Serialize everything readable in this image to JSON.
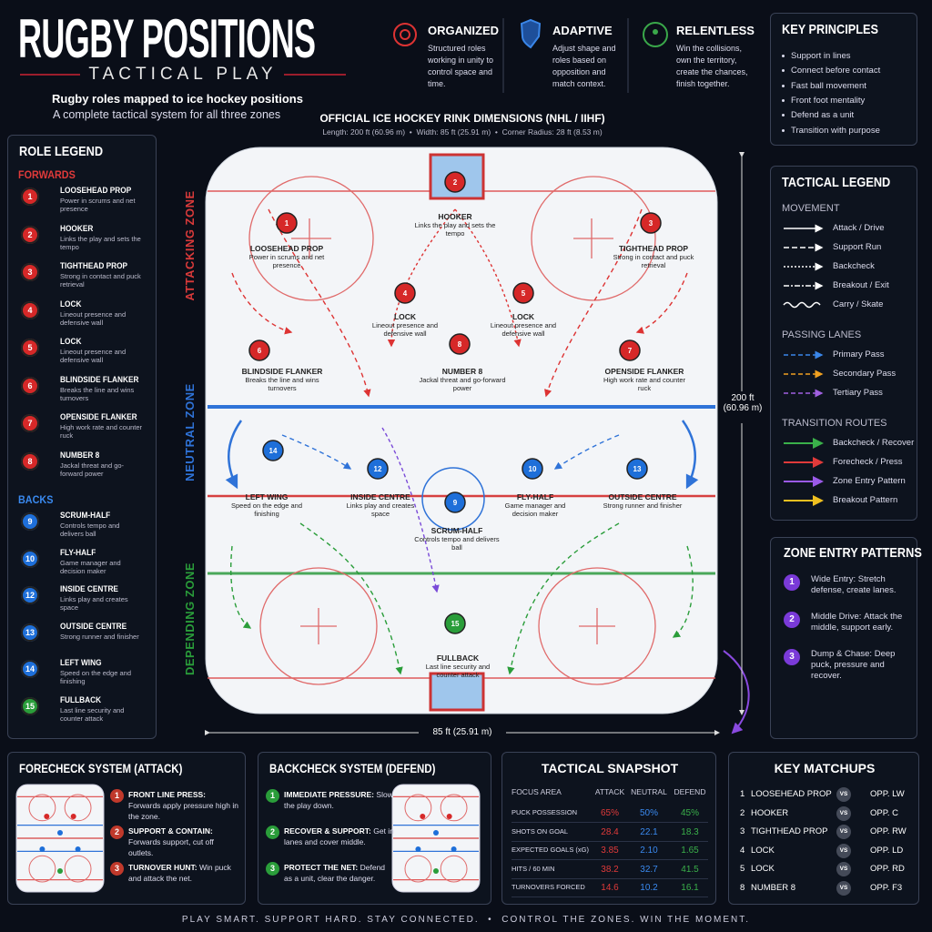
{
  "header": {
    "title": "RUGBY POSITIONS",
    "subtitle": "TACTICAL PLAY",
    "tagline": "Rugby roles mapped to ice hockey positions",
    "subtagline": "A complete tactical system for all three zones"
  },
  "pillars": [
    {
      "title": "ORGANIZED",
      "text": "Structured roles working in unity to control space and time."
    },
    {
      "title": "ADAPTIVE",
      "text": "Adjust shape and roles based on opposition and match context."
    },
    {
      "title": "RELENTLESS",
      "text": "Win the collisions, own the territory, create the chances, finish together."
    }
  ],
  "key_principles": {
    "title": "KEY PRINCIPLES",
    "items": [
      "Support in lines",
      "Connect before contact",
      "Fast ball movement",
      "Front foot mentality",
      "Defend as a unit",
      "Transition with purpose"
    ]
  },
  "role_legend": {
    "title": "ROLE LEGEND",
    "groups": [
      {
        "name": "FORWARDS",
        "roles": [
          {
            "number": "1",
            "name": "LOOSEHEAD PROP",
            "desc": "Power in scrums and net presence"
          },
          {
            "number": "2",
            "name": "HOOKER",
            "desc": "Links the play and sets the tempo"
          },
          {
            "number": "3",
            "name": "TIGHTHEAD PROP",
            "desc": "Strong in contact and puck retrieval"
          },
          {
            "number": "4",
            "name": "LOCK",
            "desc": "Lineout presence and defensive wall"
          },
          {
            "number": "5",
            "name": "LOCK",
            "desc": "Lineout presence and defensive wall"
          },
          {
            "number": "6",
            "name": "BLINDSIDE FLANKER",
            "desc": "Breaks the line and wins turnovers"
          },
          {
            "number": "7",
            "name": "OPENSIDE FLANKER",
            "desc": "High work rate and counter ruck"
          },
          {
            "number": "8",
            "name": "NUMBER 8",
            "desc": "Jackal threat and go-forward power"
          }
        ]
      },
      {
        "name": "BACKS",
        "roles": [
          {
            "number": "9",
            "name": "SCRUM-HALF",
            "desc": "Controls tempo and delivers ball"
          },
          {
            "number": "10",
            "name": "FLY-HALF",
            "desc": "Game manager and decision maker"
          },
          {
            "number": "12",
            "name": "INSIDE CENTRE",
            "desc": "Links play and creates space"
          },
          {
            "number": "13",
            "name": "OUTSIDE CENTRE",
            "desc": "Strong runner and finisher"
          },
          {
            "number": "14",
            "name": "LEFT WING",
            "desc": "Speed on the edge and finishing"
          },
          {
            "number": "15",
            "name": "FULLBACK",
            "desc": "Last line security and counter attack"
          }
        ]
      }
    ]
  },
  "rink": {
    "title": "OFFICIAL ICE HOCKEY RINK DIMENSIONS (NHL / IIHF)",
    "specs": "Length: 200 ft (60.96 m)  •  Width: 85 ft (25.91 m)  •  Corner Radius: 28 ft (8.53 m)",
    "zones": [
      "ATTACKING ZONE",
      "NEUTRAL ZONE",
      "DEPENDING ZONE"
    ],
    "length": "200 ft (60.96 m)",
    "width": "85 ft (25.91 m)"
  },
  "tactical_legend": {
    "title": "TACTICAL LEGEND",
    "groups": [
      {
        "name": "MOVEMENT",
        "items": [
          "Attack / Drive",
          "Support Run",
          "Backcheck",
          "Breakout / Exit",
          "Carry / Skate"
        ]
      },
      {
        "name": "PASSING LANES",
        "items": [
          "Primary Pass",
          "Secondary Pass",
          "Tertiary Pass"
        ]
      },
      {
        "name": "TRANSITION ROUTES",
        "items": [
          "Backcheck / Recover",
          "Forecheck / Press",
          "Zone Entry Pattern",
          "Breakout Pattern"
        ]
      }
    ]
  },
  "zone_entry": {
    "title": "ZONE ENTRY PATTERNS",
    "items": [
      {
        "number": "1",
        "lead": "Wide Entry:",
        "text": "Stretch defense, create lanes."
      },
      {
        "number": "2",
        "lead": "Middle Drive:",
        "text": "Attack the middle, support early."
      },
      {
        "number": "3",
        "lead": "Dump & Chase:",
        "text": "Deep puck, pressure and recover."
      }
    ]
  },
  "forecheck": {
    "title": "FORECHECK SYSTEM (ATTACK)",
    "items": [
      {
        "number": "1",
        "lead": "FRONT LINE PRESS:",
        "text": "Forwards apply pressure high in the zone."
      },
      {
        "number": "2",
        "lead": "SUPPORT & CONTAIN:",
        "text": "Forwards support, cut off outlets."
      },
      {
        "number": "3",
        "lead": "TURNOVER HUNT:",
        "text": "Win puck and attack the net."
      }
    ]
  },
  "backcheck": {
    "title": "BACKCHECK SYSTEM (DEFEND)",
    "items": [
      {
        "number": "1",
        "lead": "IMMEDIATE PRESSURE:",
        "text": "Slow the play down."
      },
      {
        "number": "2",
        "lead": "RECOVER & SUPPORT:",
        "text": "Get in lanes and cover middle."
      },
      {
        "number": "3",
        "lead": "PROTECT THE NET:",
        "text": "Defend as a unit, clear the danger."
      }
    ]
  },
  "snapshot": {
    "title": "TACTICAL SNAPSHOT",
    "columns": [
      "FOCUS AREA",
      "ATTACK",
      "NEUTRAL",
      "DEFEND"
    ],
    "rows": [
      [
        "PUCK POSSESSION",
        "65%",
        "50%",
        "45%"
      ],
      [
        "SHOTS ON GOAL",
        "28.4",
        "22.1",
        "18.3"
      ],
      [
        "EXPECTED GOALS (xG)",
        "3.85",
        "2.10",
        "1.65"
      ],
      [
        "HITS / 60 MIN",
        "38.2",
        "32.7",
        "41.5"
      ],
      [
        "TURNOVERS FORCED",
        "14.6",
        "10.2",
        "16.1"
      ]
    ]
  },
  "matchups": {
    "title": "KEY MATCHUPS",
    "vs": "VS",
    "rows": [
      {
        "number": "1",
        "role": "LOOSEHEAD PROP",
        "opponent": "OPP. LW"
      },
      {
        "number": "2",
        "role": "HOOKER",
        "opponent": "OPP. C"
      },
      {
        "number": "3",
        "role": "TIGHTHEAD PROP",
        "opponent": "OPP. RW"
      },
      {
        "number": "4",
        "role": "LOCK",
        "opponent": "OPP. LD"
      },
      {
        "number": "5",
        "role": "LOCK",
        "opponent": "OPP. RD"
      },
      {
        "number": "8",
        "role": "NUMBER 8",
        "opponent": "OPP. F3"
      }
    ]
  },
  "footer": "PLAY SMART. SUPPORT HARD. STAY CONNECTED.  •  CONTROL THE ZONES. WIN THE MOMENT."
}
